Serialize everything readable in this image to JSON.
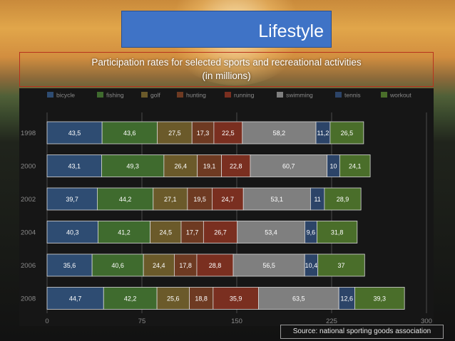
{
  "slide": {
    "title": "Lifestyle",
    "subtitle_line1": "Participation rates for selected sports and recreational activities",
    "subtitle_line2": "(in millions)",
    "source": "Source: national sporting goods association"
  },
  "chart_data": {
    "type": "bar",
    "orientation": "horizontal",
    "stacked": true,
    "categories": [
      "1998",
      "2000",
      "2002",
      "2004",
      "2006",
      "2008"
    ],
    "series": [
      {
        "name": "bicycle",
        "color": "#2e4c72",
        "values": [
          43.5,
          43.1,
          39.7,
          40.3,
          35.6,
          44.7
        ],
        "labels": [
          "43,5",
          "43,1",
          "39,7",
          "40,3",
          "35,6",
          "44,7"
        ]
      },
      {
        "name": "fishing",
        "color": "#3f6b2e",
        "values": [
          43.6,
          49.3,
          44.2,
          41.2,
          40.6,
          42.2
        ],
        "labels": [
          "43,6",
          "49,3",
          "44,2",
          "41,2",
          "40,6",
          "42,2"
        ]
      },
      {
        "name": "golf",
        "color": "#6b5a2a",
        "values": [
          27.5,
          26.4,
          27.1,
          24.5,
          24.4,
          25.6
        ],
        "labels": [
          "27,5",
          "26,4",
          "27,1",
          "24,5",
          "24,4",
          "25,6"
        ]
      },
      {
        "name": "hunting",
        "color": "#6e3a22",
        "values": [
          17.3,
          19.1,
          19.5,
          17.7,
          17.8,
          18.8
        ],
        "labels": [
          "17,3",
          "19,1",
          "19,5",
          "17,7",
          "17,8",
          "18,8"
        ]
      },
      {
        "name": "running",
        "color": "#7a2f20",
        "values": [
          22.5,
          22.8,
          24.7,
          26.7,
          28.8,
          35.9
        ],
        "labels": [
          "22,5",
          "22,8",
          "24,7",
          "26,7",
          "28,8",
          "35,9"
        ]
      },
      {
        "name": "swimming",
        "color": "#7f7f7f",
        "values": [
          58.2,
          60.7,
          53.1,
          53.4,
          56.5,
          63.5
        ],
        "labels": [
          "58,2",
          "60,7",
          "53,1",
          "53,4",
          "56,5",
          "63,5"
        ]
      },
      {
        "name": "tennis",
        "color": "#2c4468",
        "values": [
          11.2,
          10,
          11,
          9.6,
          10.4,
          12.6
        ],
        "labels": [
          "11,2",
          "10",
          "11",
          "9,6",
          "10,4",
          "12,6"
        ]
      },
      {
        "name": "workout",
        "color": "#4a6e2a",
        "values": [
          26.5,
          24.1,
          28.9,
          31.8,
          37,
          39.3
        ],
        "labels": [
          "26,5",
          "24,1",
          "28,9",
          "31,8",
          "37",
          "39,3"
        ]
      }
    ],
    "legend_labels": [
      "bicycle",
      "fishing",
      "golf",
      "hunting",
      "running",
      "swimming",
      "tennis",
      "workout"
    ],
    "xlim": [
      0,
      300
    ],
    "xticks": [
      0,
      75,
      150,
      225,
      300
    ],
    "xtick_labels": [
      "0",
      "75",
      "150",
      "225",
      "300"
    ],
    "legend_position": "top",
    "grid": true
  }
}
